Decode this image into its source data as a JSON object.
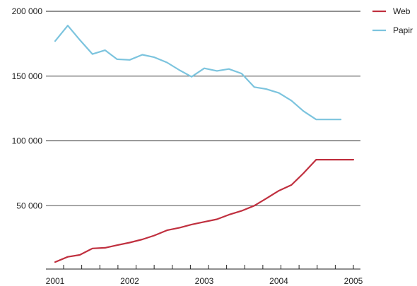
{
  "chart_data": {
    "type": "line",
    "x_ticks": [
      "2001",
      "2002",
      "2003",
      "2004",
      "2005"
    ],
    "y_ticks": [
      "200 000",
      "150 000",
      "100 000",
      "50 000"
    ],
    "y_tick_values": [
      200000,
      150000,
      100000,
      50000
    ],
    "ylim": [
      0,
      200000
    ],
    "xlim": [
      2001,
      2005.25
    ],
    "grid": true,
    "legend_position": "top-right",
    "series": [
      {
        "name": "Web",
        "color": "#c0303f",
        "x": [
          2001.0,
          2001.17,
          2001.33,
          2001.5,
          2001.67,
          2001.83,
          2002.0,
          2002.17,
          2002.33,
          2002.5,
          2002.67,
          2002.83,
          2003.0,
          2003.17,
          2003.33,
          2003.5,
          2003.67,
          2003.83,
          2004.0,
          2004.17,
          2004.33,
          2004.5,
          2004.67,
          2004.83,
          2005.0
        ],
        "values": [
          6500,
          10500,
          12000,
          17000,
          17500,
          19500,
          21500,
          24000,
          27000,
          31000,
          33000,
          35500,
          37500,
          39500,
          43000,
          46000,
          50000,
          55500,
          61500,
          66000,
          75000,
          85500,
          85500,
          85500,
          85500
        ]
      },
      {
        "name": "Papir",
        "color": "#7cc4de",
        "x": [
          2001.0,
          2001.17,
          2001.33,
          2001.5,
          2001.67,
          2001.83,
          2002.0,
          2002.17,
          2002.33,
          2002.5,
          2002.67,
          2002.83,
          2003.0,
          2003.17,
          2003.33,
          2003.5,
          2003.67,
          2003.83,
          2004.0,
          2004.17,
          2004.33,
          2004.5,
          2004.67,
          2004.83
        ],
        "values": [
          177000,
          189000,
          178000,
          167000,
          170000,
          163000,
          162500,
          166500,
          164500,
          160500,
          154500,
          149500,
          156000,
          154000,
          155500,
          152000,
          141500,
          140000,
          137000,
          131000,
          123000,
          116500,
          116500,
          116500
        ]
      }
    ]
  }
}
